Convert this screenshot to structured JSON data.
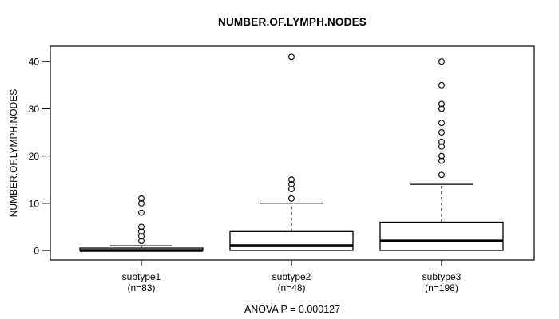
{
  "chart_data": {
    "type": "boxplot",
    "title": "NUMBER.OF.LYMPH.NODES",
    "ylabel": "NUMBER.OF.LYMPH.NODES",
    "xlabel": "",
    "annotation": "ANOVA P = 0.000127",
    "ylim": [
      0,
      41
    ],
    "yticks": [
      0,
      10,
      20,
      30,
      40
    ],
    "grid": false,
    "legend": "none",
    "colors": {
      "stroke": "#000000",
      "fill": "#ffffff",
      "background": "#ffffff"
    },
    "groups": [
      {
        "label": "subtype1",
        "sublabel": "(n=83)",
        "n": 83,
        "whisker_low": 0,
        "q1": 0,
        "median": 0,
        "q3": 0.5,
        "whisker_high": 1,
        "outliers": [
          2,
          3,
          4,
          5,
          8,
          10,
          11
        ]
      },
      {
        "label": "subtype2",
        "sublabel": "(n=48)",
        "n": 48,
        "whisker_low": 0,
        "q1": 0,
        "median": 1,
        "q3": 4,
        "whisker_high": 10,
        "outliers": [
          11,
          13,
          14,
          15,
          41
        ]
      },
      {
        "label": "subtype3",
        "sublabel": "(n=198)",
        "n": 198,
        "whisker_low": 0,
        "q1": 0,
        "median": 2,
        "q3": 6,
        "whisker_high": 14,
        "outliers": [
          16,
          19,
          20,
          22,
          23,
          25,
          27,
          30,
          31,
          35,
          40
        ]
      }
    ]
  }
}
